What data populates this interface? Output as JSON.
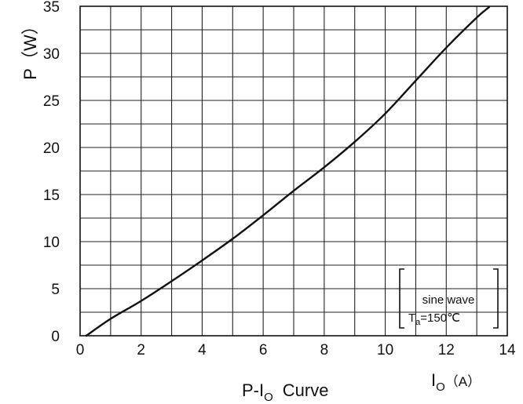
{
  "chart_data": {
    "type": "line",
    "caption": {
      "main": "P-I",
      "sub": "O",
      "rest": "Curve"
    },
    "xlabel": {
      "main": "I",
      "sub": "O",
      "unit": "（A）"
    },
    "ylabel": "P（W）",
    "xlim": [
      0,
      14
    ],
    "ylim": [
      0,
      35
    ],
    "x_ticks": [
      "0",
      "2",
      "4",
      "6",
      "8",
      "10",
      "12",
      "14"
    ],
    "y_ticks": [
      "0",
      "5",
      "10",
      "15",
      "20",
      "25",
      "30",
      "35"
    ],
    "grid": true,
    "series": [
      {
        "x": [
          0.2,
          1,
          2,
          3,
          4,
          5,
          6,
          7,
          8,
          9,
          10,
          11,
          12,
          13,
          13.4
        ],
        "y": [
          0,
          1.8,
          3.7,
          5.8,
          8.0,
          10.3,
          12.8,
          15.4,
          17.9,
          20.6,
          23.6,
          27.1,
          30.6,
          33.8,
          34.9
        ]
      }
    ],
    "annotation": {
      "line1": "sine wave",
      "line2_main": "T",
      "line2_sub": "a",
      "line2_rest": "=150℃"
    }
  },
  "colors": {
    "line": "#111111",
    "grid": "#222222",
    "background": "#ffffff"
  }
}
